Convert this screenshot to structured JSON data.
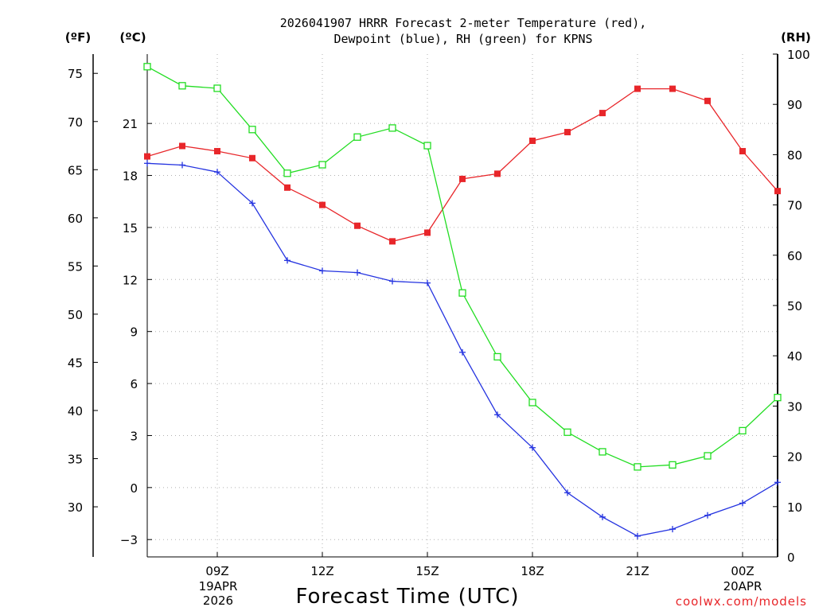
{
  "title": {
    "line1": "2026041907 HRRR Forecast 2-meter Temperature (red),",
    "line2": "Dewpoint (blue), RH (green) for KPNS"
  },
  "axis_units": {
    "left_f": "(ºF)",
    "left_c": "(ºC)",
    "right_rh": "(RH)"
  },
  "xlabel": "Forecast Time (UTC)",
  "credit": "coolwx.com/models",
  "date_labels": {
    "start_date": "19APR",
    "start_year": "2026",
    "end_date": "20APR"
  },
  "colors": {
    "temperature": "#e8262a",
    "dewpoint": "#2433e0",
    "rh": "#22dd22"
  },
  "chart_data": {
    "type": "line",
    "title": "2026041907 HRRR Forecast 2-meter Temperature (red), Dewpoint (blue), RH (green) for KPNS",
    "xlabel": "Forecast Time (UTC)",
    "x_hours": [
      7,
      8,
      9,
      10,
      11,
      12,
      13,
      14,
      15,
      16,
      17,
      18,
      19,
      20,
      21,
      22,
      23,
      24,
      25
    ],
    "x_range": [
      7,
      25
    ],
    "x_ticks": [
      {
        "hour": 9,
        "label": "09Z"
      },
      {
        "hour": 12,
        "label": "12Z"
      },
      {
        "hour": 15,
        "label": "15Z"
      },
      {
        "hour": 18,
        "label": "18Z"
      },
      {
        "hour": 21,
        "label": "21Z"
      },
      {
        "hour": 24,
        "label": "00Z"
      }
    ],
    "y_celsius": {
      "range": [
        -4,
        25
      ],
      "ticks": [
        -3,
        0,
        3,
        6,
        9,
        12,
        15,
        18,
        21
      ],
      "tick_labels": [
        "−3",
        "0",
        "3",
        "6",
        "9",
        "12",
        "15",
        "18",
        "21"
      ]
    },
    "y_fahrenheit": {
      "ticks": [
        30,
        35,
        40,
        45,
        50,
        55,
        60,
        65,
        70,
        75
      ],
      "tick_labels": [
        "30",
        "35",
        "40",
        "45",
        "50",
        "55",
        "60",
        "65",
        "70",
        "75"
      ]
    },
    "y_rh": {
      "range": [
        0,
        100
      ],
      "ticks": [
        0,
        10,
        20,
        30,
        40,
        50,
        60,
        70,
        80,
        90,
        100
      ],
      "tick_labels": [
        "0",
        "10",
        "20",
        "30",
        "40",
        "50",
        "60",
        "70",
        "80",
        "90",
        "100"
      ]
    },
    "series": [
      {
        "name": "Temperature",
        "unit": "C",
        "axis": "celsius",
        "marker": "filled-square",
        "values": [
          19.1,
          19.7,
          19.4,
          19.0,
          17.3,
          16.3,
          15.1,
          14.2,
          14.7,
          17.8,
          18.1,
          20.0,
          20.5,
          21.6,
          23.0,
          23.0,
          22.3,
          19.4,
          17.1
        ]
      },
      {
        "name": "Dewpoint",
        "unit": "C",
        "axis": "celsius",
        "marker": "plus",
        "values": [
          18.7,
          18.6,
          18.2,
          16.4,
          13.1,
          12.5,
          12.4,
          11.9,
          11.8,
          7.8,
          4.2,
          2.3,
          -0.3,
          -1.7,
          -2.8,
          -2.4,
          -1.6,
          -0.9,
          0.3
        ]
      },
      {
        "name": "RH",
        "unit": "%",
        "axis": "rh",
        "marker": "open-square",
        "values": [
          97.5,
          93.7,
          93.2,
          85.0,
          76.3,
          78.0,
          83.5,
          85.3,
          81.8,
          52.5,
          39.8,
          30.7,
          24.8,
          20.9,
          17.9,
          18.3,
          20.1,
          25.1,
          31.7
        ]
      }
    ]
  }
}
